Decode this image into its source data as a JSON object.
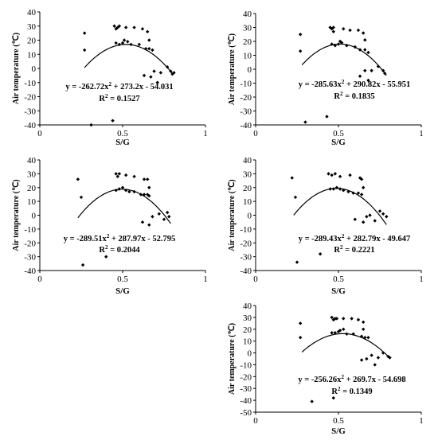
{
  "chart_data": [
    {
      "type": "scatter",
      "xlabel": "S/G",
      "ylabel": "Air temperature (℃)",
      "xlim": [
        0,
        1
      ],
      "ylim": [
        -40,
        40
      ],
      "xticks": [
        "0",
        "0.5",
        "1"
      ],
      "yticks": [
        "-40",
        "-30",
        "-20",
        "-10",
        "0",
        "10",
        "20",
        "30",
        "40"
      ],
      "equation": "y = -262.72x² + 273.2x - 54.031",
      "r2": "R² = 0.1527",
      "fit": {
        "a": -262.72,
        "b": 273.2,
        "c": -54.031,
        "x_range": [
          0.27,
          0.8
        ]
      },
      "points": [
        [
          0.27,
          25
        ],
        [
          0.27,
          13
        ],
        [
          0.31,
          -40
        ],
        [
          0.45,
          30
        ],
        [
          0.46,
          28
        ],
        [
          0.47,
          29
        ],
        [
          0.48,
          30
        ],
        [
          0.52,
          29
        ],
        [
          0.57,
          29
        ],
        [
          0.62,
          28
        ],
        [
          0.65,
          26
        ],
        [
          0.66,
          20
        ],
        [
          0.46,
          18
        ],
        [
          0.48,
          17
        ],
        [
          0.5,
          18
        ],
        [
          0.51,
          20
        ],
        [
          0.53,
          19
        ],
        [
          0.55,
          17
        ],
        [
          0.6,
          17
        ],
        [
          0.64,
          14
        ],
        [
          0.66,
          14
        ],
        [
          0.68,
          13
        ],
        [
          0.63,
          -5
        ],
        [
          0.67,
          -6
        ],
        [
          0.69,
          -2
        ],
        [
          0.71,
          -10
        ],
        [
          0.73,
          -3
        ],
        [
          0.77,
          1
        ],
        [
          0.79,
          -2
        ],
        [
          0.8,
          -4
        ],
        [
          0.81,
          -3
        ],
        [
          0.44,
          -37
        ]
      ]
    },
    {
      "type": "scatter",
      "xlabel": "S/G",
      "ylabel": "Air temperature (℃)",
      "xlim": [
        0,
        1
      ],
      "ylim": [
        -40,
        40
      ],
      "xticks": [
        "0",
        "0.5",
        "1"
      ],
      "yticks": [
        "-40",
        "-30",
        "-20",
        "-10",
        "0",
        "10",
        "20",
        "30",
        "40"
      ],
      "equation": "y = -285.63x² + 290.82x - 55.951",
      "r2": "R² = 0.1835",
      "fit": {
        "a": -285.63,
        "b": 290.82,
        "c": -55.951,
        "x_range": [
          0.28,
          0.79
        ]
      },
      "points": [
        [
          0.27,
          25
        ],
        [
          0.27,
          13
        ],
        [
          0.3,
          -38
        ],
        [
          0.43,
          -34
        ],
        [
          0.45,
          30
        ],
        [
          0.46,
          29
        ],
        [
          0.47,
          30
        ],
        [
          0.47,
          27
        ],
        [
          0.53,
          29
        ],
        [
          0.57,
          28
        ],
        [
          0.62,
          28
        ],
        [
          0.65,
          26
        ],
        [
          0.66,
          21
        ],
        [
          0.46,
          18
        ],
        [
          0.48,
          17
        ],
        [
          0.5,
          18
        ],
        [
          0.51,
          20
        ],
        [
          0.52,
          19
        ],
        [
          0.55,
          17
        ],
        [
          0.6,
          16
        ],
        [
          0.63,
          14
        ],
        [
          0.66,
          14
        ],
        [
          0.68,
          12
        ],
        [
          0.63,
          -5
        ],
        [
          0.66,
          -1
        ],
        [
          0.68,
          -8
        ],
        [
          0.7,
          -1
        ],
        [
          0.74,
          2
        ],
        [
          0.77,
          -1
        ],
        [
          0.78,
          -3
        ]
      ]
    },
    {
      "type": "scatter",
      "xlabel": "S/G",
      "ylabel": "Air temperature (℃)",
      "xlim": [
        0,
        1
      ],
      "ylim": [
        -40,
        40
      ],
      "xticks": [
        "0",
        "0.5",
        "1"
      ],
      "yticks": [
        "-40",
        "-30",
        "-20",
        "-10",
        "0",
        "10",
        "20",
        "30",
        "40"
      ],
      "equation": "y = -289.51x² + 287.97x - 52.795",
      "r2": "R² = 0.2044",
      "fit": {
        "a": -289.51,
        "b": 287.97,
        "c": -52.795,
        "x_range": [
          0.23,
          0.79
        ]
      },
      "points": [
        [
          0.23,
          26
        ],
        [
          0.25,
          13
        ],
        [
          0.26,
          -36
        ],
        [
          0.4,
          -30
        ],
        [
          0.46,
          30
        ],
        [
          0.47,
          28
        ],
        [
          0.48,
          30
        ],
        [
          0.52,
          29
        ],
        [
          0.57,
          28
        ],
        [
          0.63,
          26
        ],
        [
          0.65,
          26
        ],
        [
          0.66,
          20
        ],
        [
          0.46,
          18
        ],
        [
          0.48,
          19
        ],
        [
          0.5,
          20
        ],
        [
          0.52,
          18
        ],
        [
          0.54,
          17
        ],
        [
          0.57,
          17
        ],
        [
          0.61,
          15
        ],
        [
          0.63,
          15
        ],
        [
          0.65,
          15
        ],
        [
          0.66,
          14
        ],
        [
          0.62,
          -5
        ],
        [
          0.66,
          -7
        ],
        [
          0.68,
          -1
        ],
        [
          0.72,
          1
        ],
        [
          0.75,
          -3
        ],
        [
          0.77,
          2
        ],
        [
          0.78,
          -1
        ]
      ]
    },
    {
      "type": "scatter",
      "xlabel": "S/G",
      "ylabel": "Air temperature (℃)",
      "xlim": [
        0,
        1
      ],
      "ylim": [
        -40,
        40
      ],
      "xticks": [
        "0",
        "0.5",
        "1"
      ],
      "yticks": [
        "-40",
        "-30",
        "-20",
        "-10",
        "0",
        "10",
        "20",
        "30",
        "40"
      ],
      "equation": "y = -289.43x² + 282.79x - 49.647",
      "r2": "R² = 0.2221",
      "fit": {
        "a": -289.43,
        "b": 282.79,
        "c": -49.647,
        "x_range": [
          0.23,
          0.79
        ]
      },
      "points": [
        [
          0.22,
          27
        ],
        [
          0.24,
          13
        ],
        [
          0.25,
          -34
        ],
        [
          0.39,
          -28
        ],
        [
          0.44,
          30
        ],
        [
          0.46,
          29
        ],
        [
          0.48,
          30
        ],
        [
          0.51,
          28
        ],
        [
          0.57,
          29
        ],
        [
          0.63,
          27
        ],
        [
          0.64,
          26
        ],
        [
          0.65,
          20
        ],
        [
          0.45,
          19
        ],
        [
          0.47,
          19
        ],
        [
          0.49,
          20
        ],
        [
          0.51,
          19
        ],
        [
          0.53,
          18
        ],
        [
          0.56,
          17
        ],
        [
          0.59,
          16
        ],
        [
          0.62,
          16
        ],
        [
          0.64,
          15
        ],
        [
          0.6,
          -3
        ],
        [
          0.65,
          -5
        ],
        [
          0.67,
          -1
        ],
        [
          0.69,
          0
        ],
        [
          0.72,
          -4
        ],
        [
          0.75,
          3
        ],
        [
          0.77,
          1
        ],
        [
          0.79,
          -1
        ]
      ]
    },
    {
      "type": "scatter",
      "xlabel": "S/G",
      "ylabel": "Air temperature (℃)",
      "xlim": [
        0,
        1
      ],
      "ylim": [
        -50,
        40
      ],
      "xticks": [
        "0",
        "0.5",
        "1"
      ],
      "yticks": [
        "-50",
        "-40",
        "-30",
        "-20",
        "-10",
        "0",
        "10",
        "20",
        "30",
        "40"
      ],
      "equation": "y = -256.26x² + 269.7x - 54.698",
      "r2": "R² = 0.1349",
      "fit": {
        "a": -256.26,
        "b": 269.7,
        "c": -54.698,
        "x_range": [
          0.28,
          0.8
        ]
      },
      "points": [
        [
          0.27,
          25
        ],
        [
          0.27,
          13
        ],
        [
          0.34,
          -41
        ],
        [
          0.46,
          30
        ],
        [
          0.47,
          28
        ],
        [
          0.48,
          29
        ],
        [
          0.49,
          29
        ],
        [
          0.53,
          29
        ],
        [
          0.58,
          29
        ],
        [
          0.62,
          28
        ],
        [
          0.65,
          26
        ],
        [
          0.65,
          20
        ],
        [
          0.46,
          17
        ],
        [
          0.48,
          17
        ],
        [
          0.5,
          18
        ],
        [
          0.51,
          19
        ],
        [
          0.53,
          20
        ],
        [
          0.55,
          16
        ],
        [
          0.59,
          16
        ],
        [
          0.64,
          14
        ],
        [
          0.66,
          13
        ],
        [
          0.68,
          13
        ],
        [
          0.64,
          -6
        ],
        [
          0.67,
          -5
        ],
        [
          0.7,
          -2
        ],
        [
          0.72,
          -10
        ],
        [
          0.74,
          -4
        ],
        [
          0.77,
          0
        ],
        [
          0.8,
          -3
        ],
        [
          0.81,
          -4
        ],
        [
          0.47,
          -38
        ]
      ]
    }
  ]
}
